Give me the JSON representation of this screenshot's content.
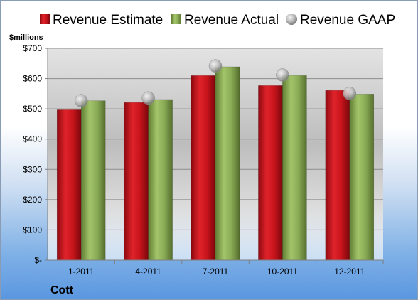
{
  "colors": {
    "estimate": "#c8141c",
    "actual": "#8aac56",
    "gaap": "#b8b8b8"
  },
  "company": "Cott",
  "chart_data": {
    "type": "bar",
    "ylabel": "$millions",
    "categories": [
      "1-2011",
      "4-2011",
      "7-2011",
      "10-2011",
      "12-2011"
    ],
    "series": [
      {
        "name": "Revenue Estimate",
        "kind": "bar",
        "values": [
          497,
          521,
          610,
          577,
          561
        ]
      },
      {
        "name": "Revenue Actual",
        "kind": "bar",
        "values": [
          527,
          531,
          639,
          610,
          549
        ]
      },
      {
        "name": "Revenue GAAP",
        "kind": "marker",
        "values": [
          527,
          536,
          642,
          612,
          551
        ]
      }
    ],
    "ylim": [
      0,
      700
    ],
    "yticks": [
      0,
      100,
      200,
      300,
      400,
      500,
      600,
      700
    ],
    "ytick_labels": [
      "$-",
      "$100",
      "$200",
      "$300",
      "$400",
      "$500",
      "$600",
      "$700"
    ],
    "grid": true,
    "legend_position": "top"
  }
}
